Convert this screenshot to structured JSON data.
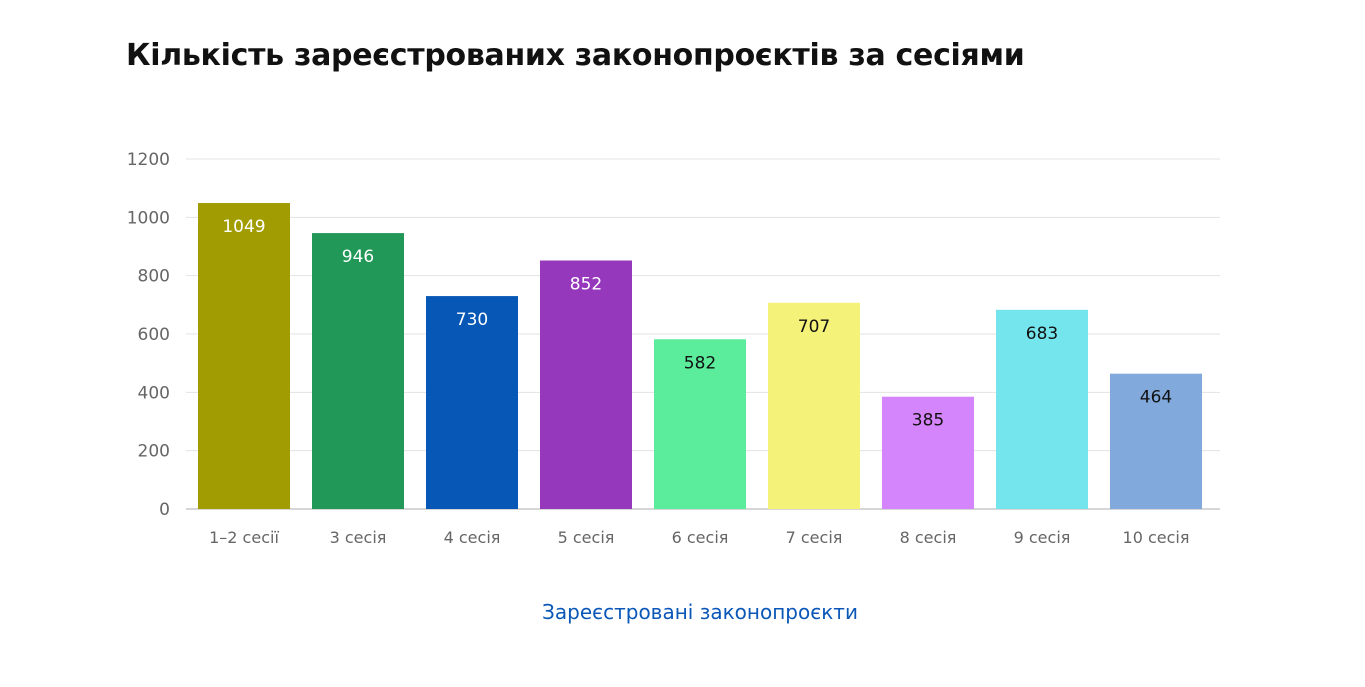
{
  "chart_data": {
    "type": "bar",
    "title": "Кількість зареєстрованих законопроєктів за сесіями",
    "categories": [
      "1–2 сесії",
      "3 сесія",
      "4 сесія",
      "5 сесія",
      "6 сесія",
      "7 сесія",
      "8 сесія",
      "9 сесія",
      "10 сесія"
    ],
    "series": [
      {
        "name": "Зареєстровані законопроєкти",
        "values": [
          1049,
          946,
          730,
          852,
          582,
          707,
          385,
          683,
          464
        ]
      }
    ],
    "colors": [
      "#a29c03",
      "#219858",
      "#0657b6",
      "#9538bb",
      "#5bed9b",
      "#f5f27a",
      "#d585fb",
      "#74e5ec",
      "#81a9dc"
    ],
    "label_colors": [
      "#ffffff",
      "#ffffff",
      "#ffffff",
      "#ffffff",
      "#111111",
      "#111111",
      "#111111",
      "#111111",
      "#111111"
    ],
    "xlabel": "",
    "ylabel": "",
    "ylim": [
      0,
      1200
    ],
    "yticks": [
      0,
      200,
      400,
      600,
      800,
      1000,
      1200
    ],
    "grid": true,
    "legend_placement": "bottom"
  }
}
